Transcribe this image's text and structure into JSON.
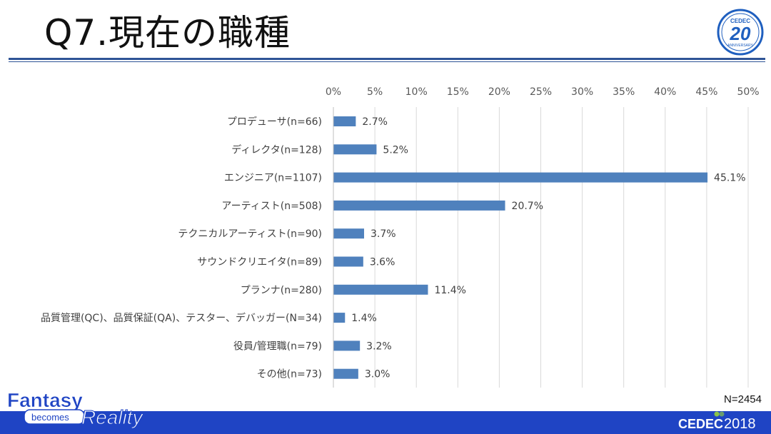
{
  "slide": {
    "title": "Q7.現在の職種",
    "sample_size": "N=2454"
  },
  "anniversary_badge": {
    "brand": "CEDEC",
    "number": "20",
    "word": "ANNIVERSARY"
  },
  "footer": {
    "tagline_word1": "Fantasy",
    "tagline_word2": "becomes",
    "tagline_word3": "Reality",
    "brand": "CEDEC",
    "year": "2018"
  },
  "colors": {
    "bar": "#4f81bd",
    "accent": "#2f5496",
    "footer": "#1f44c4",
    "grid": "#d9d9d9"
  },
  "chart_data": {
    "type": "bar",
    "orientation": "horizontal",
    "categories": [
      "プロデューサ(n=66)",
      "ディレクタ(n=128)",
      "エンジニア(n=1107)",
      "アーティスト(n=508)",
      "テクニカルアーティスト(n=90)",
      "サウンドクリエイタ(n=89)",
      "プランナ(n=280)",
      "品質管理(QC)、品質保証(QA)、テスター、デバッガー(N=34)",
      "役員/管理職(n=79)",
      "その他(n=73)"
    ],
    "values": [
      2.7,
      5.2,
      45.1,
      20.7,
      3.7,
      3.6,
      11.4,
      1.4,
      3.2,
      3.0
    ],
    "data_labels": [
      "2.7%",
      "5.2%",
      "45.1%",
      "20.7%",
      "3.7%",
      "3.6%",
      "11.4%",
      "1.4%",
      "3.2%",
      "3.0%"
    ],
    "xlim": [
      0,
      50
    ],
    "ticks": [
      0,
      5,
      10,
      15,
      20,
      25,
      30,
      35,
      40,
      45,
      50
    ],
    "tick_labels": [
      "0%",
      "5%",
      "10%",
      "15%",
      "20%",
      "25%",
      "30%",
      "35%",
      "40%",
      "45%",
      "50%"
    ],
    "axis_position": "top",
    "grid": true,
    "legend": "none"
  }
}
